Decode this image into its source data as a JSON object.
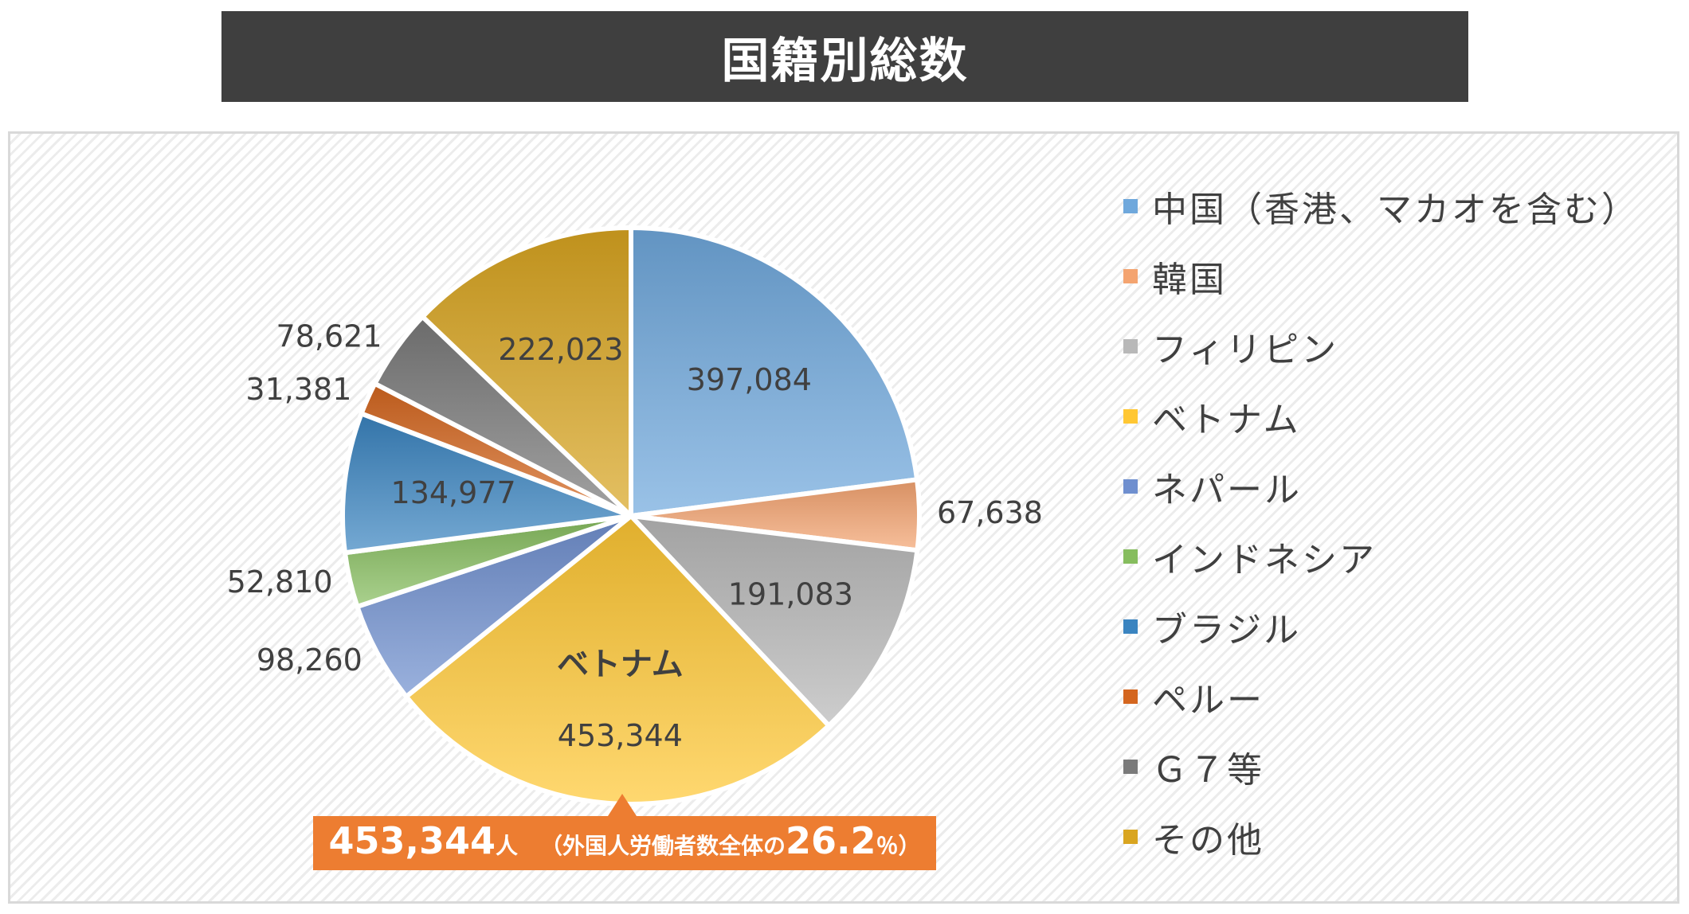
{
  "title": "国籍別総数",
  "chart_data": {
    "type": "pie",
    "title": "国籍別総数",
    "slices": [
      {
        "name": "中国（香港、マカオを含む）",
        "value": 397084,
        "label": "397,084",
        "color": "#6fa8dc"
      },
      {
        "name": "韓国",
        "value": 67638,
        "label": "67,638",
        "color": "#f4a470"
      },
      {
        "name": "フィリピン",
        "value": 191083,
        "label": "191,083",
        "color": "#b8b8b8"
      },
      {
        "name": "ベトナム",
        "value": 453344,
        "label": "453,344",
        "color": "#ffc733"
      },
      {
        "name": "ネパール",
        "value": 98260,
        "label": "98,260",
        "color": "#6f8fcf"
      },
      {
        "name": "インドネシア",
        "value": 52810,
        "label": "52,810",
        "color": "#86bd5e"
      },
      {
        "name": "ブラジル",
        "value": 134977,
        "label": "134,977",
        "color": "#3a84c0"
      },
      {
        "name": "ペルー",
        "value": 31381,
        "label": "31,381",
        "color": "#d4661f"
      },
      {
        "name": "Ｇ７等",
        "value": 78621,
        "label": "78,621",
        "color": "#7a7a7a"
      },
      {
        "name": "その他",
        "value": 222023,
        "label": "222,023",
        "color": "#d9a520"
      }
    ],
    "highlight_label": "ベトナム",
    "legend_position": "right"
  },
  "callout": {
    "value": "453,344",
    "unit": "人",
    "open": "（外国人労働者数全体の",
    "percent": "26.2",
    "close": "％）"
  }
}
